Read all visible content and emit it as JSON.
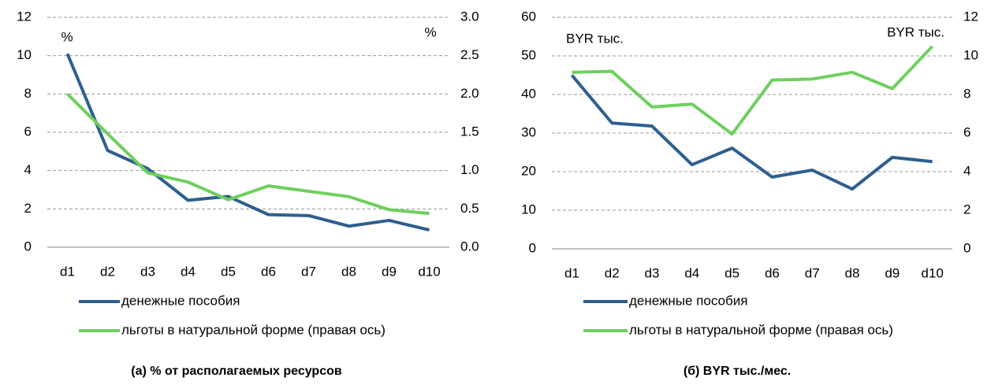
{
  "chart_data": [
    {
      "type": "line",
      "title": "(а) % от располагаемых ресурсов",
      "annotations": [
        "%",
        "%"
      ],
      "categories": [
        "d1",
        "d2",
        "d3",
        "d4",
        "d5",
        "d6",
        "d7",
        "d8",
        "d9",
        "d10"
      ],
      "series": [
        {
          "name": "денежные пособия",
          "color": "#2e5f8f",
          "values": [
            10.1,
            5.05,
            4.1,
            2.45,
            2.65,
            1.7,
            1.65,
            1.1,
            1.4,
            0.9
          ]
        },
        {
          "name": "льготы в натуральной форме (правая ось)",
          "color": "#6fcf5f",
          "axis": "y2",
          "values": [
            2.0,
            1.48,
            0.97,
            0.85,
            0.62,
            0.8,
            0.73,
            0.66,
            0.49,
            0.44
          ]
        }
      ],
      "ylim": [
        0,
        12
      ],
      "yticks": [
        0,
        2,
        4,
        6,
        8,
        10,
        12
      ],
      "y2lim": [
        0,
        3
      ],
      "y2ticks": [
        {
          "value": 0,
          "label": "0.0"
        },
        0.5,
        {
          "value": 1,
          "label": "1.0"
        },
        1.5,
        {
          "value": 2,
          "label": "2.0"
        },
        2.5,
        {
          "value": 3,
          "label": "3.0"
        }
      ],
      "grid": true,
      "legend": "bottom"
    },
    {
      "type": "line",
      "title": "(б) BYR тыс./мес.",
      "annotations": [
        "BYR тыс.",
        "BYR тыс."
      ],
      "categories": [
        "d1",
        "d2",
        "d3",
        "d4",
        "d5",
        "d6",
        "d7",
        "d8",
        "d9",
        "d10"
      ],
      "series": [
        {
          "name": "денежные пособия",
          "color": "#2e5f8f",
          "values": [
            45,
            32.6,
            31.8,
            21.8,
            26.1,
            18.6,
            20.4,
            15.5,
            23.7,
            22.6
          ]
        },
        {
          "name": "льготы в натуральной форме (правая ось)",
          "color": "#6fcf5f",
          "axis": "y2",
          "values": [
            9.15,
            9.2,
            7.35,
            7.5,
            5.95,
            8.75,
            8.8,
            9.15,
            8.3,
            10.5
          ]
        }
      ],
      "ylim": [
        0,
        60
      ],
      "yticks": [
        0,
        10,
        20,
        30,
        40,
        50,
        60
      ],
      "y2lim": [
        0,
        12
      ],
      "y2ticks": [
        0,
        2,
        4,
        6,
        8,
        10,
        12
      ],
      "grid": true,
      "legend": "bottom"
    }
  ]
}
